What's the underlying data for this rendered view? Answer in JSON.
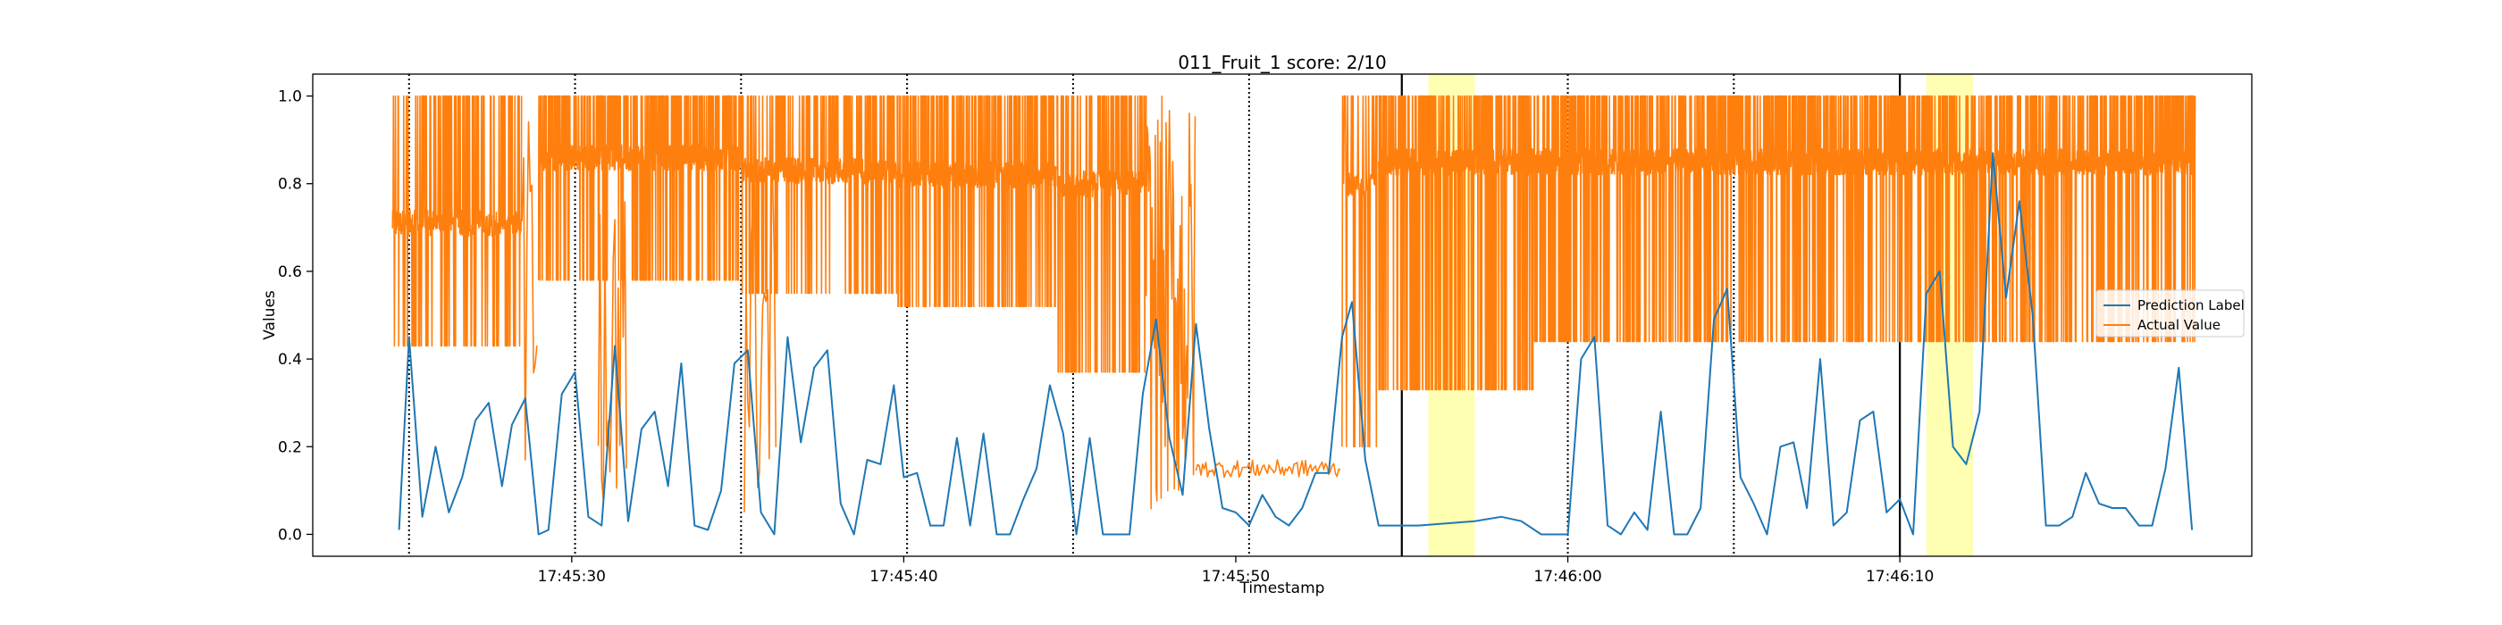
{
  "chart_data": {
    "type": "line",
    "title": "011_Fruit_1 score: 2/10",
    "xlabel": "Timestamp",
    "ylabel": "Values",
    "x_range": [
      "17:45:22.2",
      "17:46:20.6"
    ],
    "ylim": [
      -0.05,
      1.05
    ],
    "xticks": [
      {
        "time": "17:45:30",
        "label": "17:45:30"
      },
      {
        "time": "17:45:40",
        "label": "17:45:40"
      },
      {
        "time": "17:45:50",
        "label": "17:45:50"
      },
      {
        "time": "17:46:00",
        "label": "17:46:00"
      },
      {
        "time": "17:46:10",
        "label": "17:46:10"
      }
    ],
    "yticks": [
      "0.0",
      "0.2",
      "0.4",
      "0.6",
      "0.8",
      "1.0"
    ],
    "grid": false,
    "legend_position": "center-right",
    "dotted_lines": [
      "17:45:25.1",
      "17:45:30.1",
      "17:45:35.1",
      "17:45:40.1",
      "17:45:45.1",
      "17:45:50.4",
      "17:46:00.0",
      "17:46:05.0"
    ],
    "solid_lines": [
      "17:45:55.0",
      "17:46:10.0"
    ],
    "highlight_regions": [
      {
        "start": "17:45:55.8",
        "end": "17:45:57.2"
      },
      {
        "start": "17:46:10.8",
        "end": "17:46:12.2"
      }
    ],
    "series": [
      {
        "name": "Prediction Label",
        "color": "#1f77b4",
        "points": [
          [
            "17:45:24.8",
            0.01
          ],
          [
            "17:45:25.1",
            0.45
          ],
          [
            "17:45:25.5",
            0.04
          ],
          [
            "17:45:25.9",
            0.2
          ],
          [
            "17:45:26.3",
            0.05
          ],
          [
            "17:45:26.7",
            0.13
          ],
          [
            "17:45:27.1",
            0.26
          ],
          [
            "17:45:27.5",
            0.3
          ],
          [
            "17:45:27.9",
            0.11
          ],
          [
            "17:45:28.2",
            0.25
          ],
          [
            "17:45:28.6",
            0.31
          ],
          [
            "17:45:29.0",
            0.0
          ],
          [
            "17:45:29.3",
            0.01
          ],
          [
            "17:45:29.7",
            0.32
          ],
          [
            "17:45:30.1",
            0.37
          ],
          [
            "17:45:30.5",
            0.04
          ],
          [
            "17:45:30.9",
            0.02
          ],
          [
            "17:45:31.3",
            0.43
          ],
          [
            "17:45:31.7",
            0.03
          ],
          [
            "17:45:32.1",
            0.24
          ],
          [
            "17:45:32.5",
            0.28
          ],
          [
            "17:45:32.9",
            0.11
          ],
          [
            "17:45:33.3",
            0.39
          ],
          [
            "17:45:33.7",
            0.02
          ],
          [
            "17:45:34.1",
            0.01
          ],
          [
            "17:45:34.5",
            0.1
          ],
          [
            "17:45:34.9",
            0.39
          ],
          [
            "17:45:35.3",
            0.42
          ],
          [
            "17:45:35.7",
            0.05
          ],
          [
            "17:45:36.1",
            0.0
          ],
          [
            "17:45:36.5",
            0.45
          ],
          [
            "17:45:36.9",
            0.21
          ],
          [
            "17:45:37.3",
            0.38
          ],
          [
            "17:45:37.7",
            0.42
          ],
          [
            "17:45:38.1",
            0.07
          ],
          [
            "17:45:38.5",
            0.0
          ],
          [
            "17:45:38.9",
            0.17
          ],
          [
            "17:45:39.3",
            0.16
          ],
          [
            "17:45:39.7",
            0.34
          ],
          [
            "17:45:40.0",
            0.13
          ],
          [
            "17:45:40.4",
            0.14
          ],
          [
            "17:45:40.8",
            0.02
          ],
          [
            "17:45:41.2",
            0.02
          ],
          [
            "17:45:41.6",
            0.22
          ],
          [
            "17:45:42.0",
            0.02
          ],
          [
            "17:45:42.4",
            0.23
          ],
          [
            "17:45:42.8",
            0.0
          ],
          [
            "17:45:43.2",
            0.0
          ],
          [
            "17:45:43.6",
            0.08
          ],
          [
            "17:45:44.0",
            0.15
          ],
          [
            "17:45:44.4",
            0.34
          ],
          [
            "17:45:44.8",
            0.23
          ],
          [
            "17:45:45.2",
            0.0
          ],
          [
            "17:45:45.6",
            0.22
          ],
          [
            "17:45:46.0",
            0.0
          ],
          [
            "17:45:46.4",
            0.0
          ],
          [
            "17:45:46.8",
            0.0
          ],
          [
            "17:45:47.2",
            0.32
          ],
          [
            "17:45:47.6",
            0.49
          ],
          [
            "17:45:48.0",
            0.22
          ],
          [
            "17:45:48.4",
            0.09
          ],
          [
            "17:45:48.8",
            0.48
          ],
          [
            "17:45:49.2",
            0.24
          ],
          [
            "17:45:49.6",
            0.06
          ],
          [
            "17:45:50.0",
            0.05
          ],
          [
            "17:45:50.4",
            0.02
          ],
          [
            "17:45:50.8",
            0.09
          ],
          [
            "17:45:51.2",
            0.04
          ],
          [
            "17:45:51.6",
            0.02
          ],
          [
            "17:45:52.0",
            0.06
          ],
          [
            "17:45:52.4",
            0.14
          ],
          [
            "17:45:52.8",
            0.14
          ],
          [
            "17:45:53.2",
            0.45
          ],
          [
            "17:45:53.5",
            0.53
          ],
          [
            "17:45:53.9",
            0.17
          ],
          [
            "17:45:54.3",
            0.02
          ],
          [
            "17:45:55.5",
            0.02
          ],
          [
            "17:45:57.2",
            0.03
          ],
          [
            "17:45:58.0",
            0.04
          ],
          [
            "17:45:58.6",
            0.03
          ],
          [
            "17:45:59.2",
            0.0
          ],
          [
            "17:45:59.6",
            0.0
          ],
          [
            "17:46:00.0",
            0.0
          ],
          [
            "17:46:00.4",
            0.4
          ],
          [
            "17:46:00.8",
            0.45
          ],
          [
            "17:46:01.2",
            0.02
          ],
          [
            "17:46:01.6",
            0.0
          ],
          [
            "17:46:02.0",
            0.05
          ],
          [
            "17:46:02.4",
            0.01
          ],
          [
            "17:46:02.8",
            0.28
          ],
          [
            "17:46:03.2",
            0.0
          ],
          [
            "17:46:03.6",
            0.0
          ],
          [
            "17:46:04.0",
            0.06
          ],
          [
            "17:46:04.4",
            0.49
          ],
          [
            "17:46:04.8",
            0.56
          ],
          [
            "17:46:05.2",
            0.13
          ],
          [
            "17:46:05.6",
            0.07
          ],
          [
            "17:46:06.0",
            0.0
          ],
          [
            "17:46:06.4",
            0.2
          ],
          [
            "17:46:06.8",
            0.21
          ],
          [
            "17:46:07.2",
            0.06
          ],
          [
            "17:46:07.6",
            0.4
          ],
          [
            "17:46:08.0",
            0.02
          ],
          [
            "17:46:08.4",
            0.05
          ],
          [
            "17:46:08.8",
            0.26
          ],
          [
            "17:46:09.2",
            0.28
          ],
          [
            "17:46:09.6",
            0.05
          ],
          [
            "17:46:10.0",
            0.08
          ],
          [
            "17:46:10.4",
            0.0
          ],
          [
            "17:46:10.8",
            0.55
          ],
          [
            "17:46:11.2",
            0.6
          ],
          [
            "17:46:11.6",
            0.2
          ],
          [
            "17:46:12.0",
            0.16
          ],
          [
            "17:46:12.4",
            0.28
          ],
          [
            "17:46:12.8",
            0.87
          ],
          [
            "17:46:13.2",
            0.54
          ],
          [
            "17:46:13.6",
            0.76
          ],
          [
            "17:46:14.0",
            0.5
          ],
          [
            "17:46:14.4",
            0.02
          ],
          [
            "17:46:14.8",
            0.02
          ],
          [
            "17:46:15.2",
            0.04
          ],
          [
            "17:46:15.6",
            0.14
          ],
          [
            "17:46:16.0",
            0.07
          ],
          [
            "17:46:16.4",
            0.06
          ],
          [
            "17:46:16.8",
            0.06
          ],
          [
            "17:46:17.2",
            0.02
          ],
          [
            "17:46:17.6",
            0.02
          ],
          [
            "17:46:18.0",
            0.15
          ],
          [
            "17:46:18.4",
            0.38
          ],
          [
            "17:46:18.8",
            0.01
          ]
        ]
      },
      {
        "name": "Actual Value",
        "color": "#ff7f0e",
        "segments": [
          {
            "start": "17:45:24.6",
            "end": "17:45:28.5",
            "low": 0.43,
            "high": 1.0,
            "mid": 0.71,
            "freq": 2.2,
            "dense": 5
          },
          {
            "start": "17:45:28.5",
            "end": "17:45:29.0",
            "low": 0.07,
            "high": 1.0,
            "mid": 0.5,
            "freq": 2.5,
            "dense": 1
          },
          {
            "start": "17:45:29.0",
            "end": "17:45:35.1",
            "low": 0.58,
            "high": 1.0,
            "mid": 0.86,
            "freq": 3.5,
            "dense": 8
          },
          {
            "start": "17:45:30.8",
            "end": "17:45:31.7",
            "low": 0.07,
            "high": 0.9,
            "mid": 0.45,
            "freq": 2.5,
            "dense": 1
          },
          {
            "start": "17:45:35.1",
            "end": "17:45:39.8",
            "low": 0.55,
            "high": 1.0,
            "mid": 0.83,
            "freq": 3.2,
            "dense": 6
          },
          {
            "start": "17:45:35.2",
            "end": "17:45:36.2",
            "low": 0.02,
            "high": 0.9,
            "mid": 0.4,
            "freq": 2.5,
            "dense": 1
          },
          {
            "start": "17:45:39.8",
            "end": "17:45:44.6",
            "low": 0.52,
            "high": 1.0,
            "mid": 0.82,
            "freq": 3.4,
            "dense": 7
          },
          {
            "start": "17:45:44.6",
            "end": "17:45:47.3",
            "low": 0.37,
            "high": 1.0,
            "mid": 0.8,
            "freq": 3.2,
            "dense": 6
          },
          {
            "start": "17:45:47.3",
            "end": "17:45:48.8",
            "low": 0.05,
            "high": 1.0,
            "mid": 0.45,
            "freq": 2.5,
            "dense": 2
          },
          {
            "start": "17:45:48.8",
            "end": "17:45:53.2",
            "low": 0.13,
            "high": 0.17,
            "mid": 0.15,
            "freq": 8.0,
            "dense": 1
          },
          {
            "start": "17:45:53.2",
            "end": "17:45:54.3",
            "low": 0.2,
            "high": 1.0,
            "mid": 0.8,
            "freq": 3.0,
            "dense": 3
          },
          {
            "start": "17:45:54.3",
            "end": "17:45:59.0",
            "low": 0.33,
            "high": 1.0,
            "mid": 0.85,
            "freq": 3.4,
            "dense": 8
          },
          {
            "start": "17:45:59.0",
            "end": "17:46:11.5",
            "low": 0.44,
            "high": 1.0,
            "mid": 0.85,
            "freq": 3.4,
            "dense": 8
          },
          {
            "start": "17:46:11.5",
            "end": "17:46:18.9",
            "low": 0.44,
            "high": 1.0,
            "mid": 0.85,
            "freq": 3.4,
            "dense": 7
          }
        ]
      }
    ]
  }
}
